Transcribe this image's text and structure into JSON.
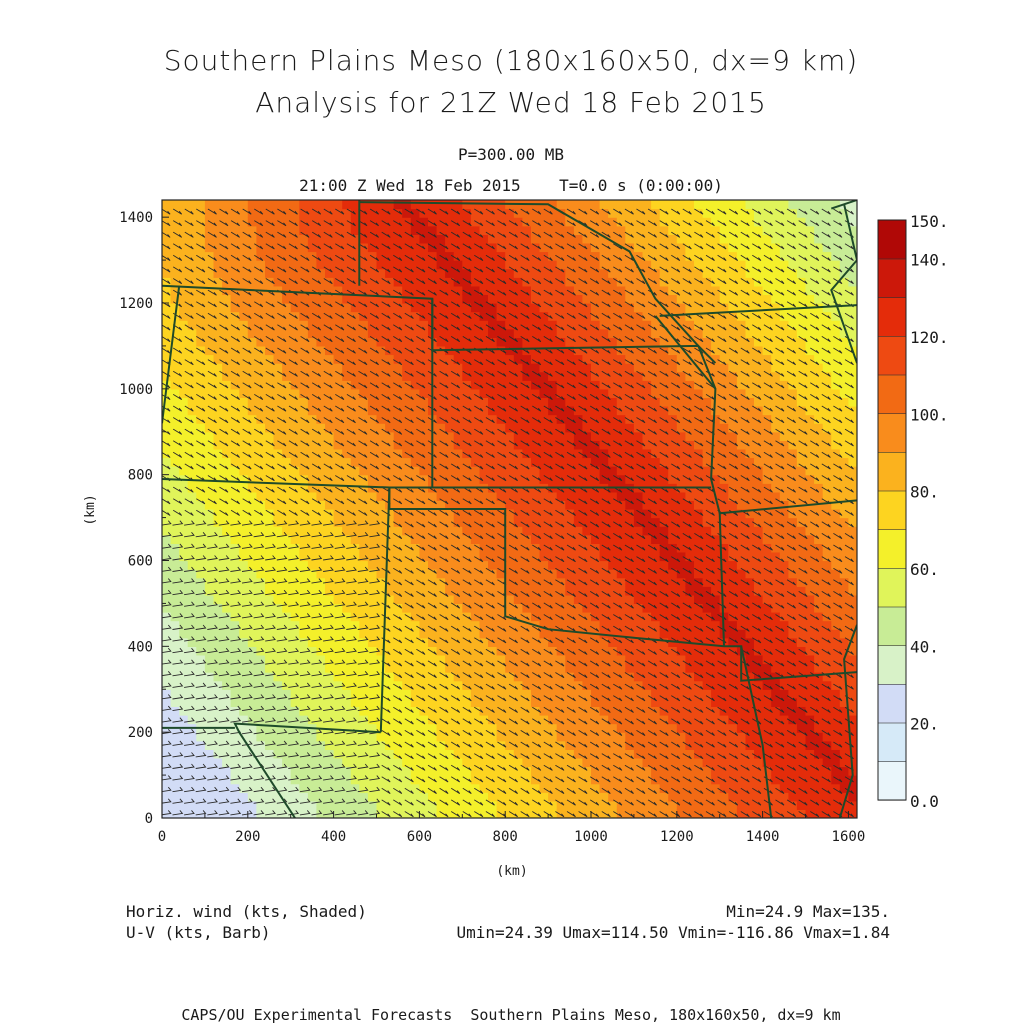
{
  "title": {
    "line1": "Southern Plains Meso (180x160x50, dx=9 km)",
    "line2": "Analysis for 21Z Wed 18 Feb 2015"
  },
  "subtitle": {
    "level": "P=300.00 MB",
    "time": "21:00 Z Wed 18 Feb 2015    T=0.0 s (0:00:00)"
  },
  "axes": {
    "x_label": "(km)",
    "y_label": "(km)",
    "x_ticks": [
      "0",
      "200",
      "400",
      "600",
      "800",
      "1000",
      "1200",
      "1400",
      "1600"
    ],
    "y_ticks": [
      "0",
      "200",
      "400",
      "600",
      "800",
      "1000",
      "1200",
      "1400"
    ],
    "x_range_km": [
      0,
      1620
    ],
    "y_range_km": [
      0,
      1440
    ]
  },
  "colorbar": {
    "labels": [
      "150.",
      "140.",
      "120.",
      "100.",
      "80.",
      "60.",
      "40.",
      "20.",
      "0.0"
    ],
    "label_values": [
      150,
      140,
      120,
      100,
      80,
      60,
      40,
      20,
      0
    ],
    "levels": [
      0,
      10,
      20,
      30,
      40,
      50,
      60,
      70,
      80,
      90,
      100,
      110,
      120,
      130,
      140,
      150
    ],
    "colors": [
      "#eaf6fb",
      "#d6eaf8",
      "#d2dcf6",
      "#d8f2c8",
      "#c8ec96",
      "#e0f45a",
      "#f4f02a",
      "#fdd420",
      "#fbb21e",
      "#f98c1c",
      "#f26a14",
      "#ee4a12",
      "#e42c0a",
      "#cc180a",
      "#b00806"
    ]
  },
  "footer": {
    "left_line1": "Horiz. wind (kts, Shaded)",
    "left_line2": "U-V (kts, Barb)",
    "right_line1": "Min=24.9 Max=135.",
    "right_line2": "Umin=24.39 Umax=114.50 Vmin=-116.86 Vmax=1.84",
    "bottom": "CAPS/OU Experimental Forecasts  Southern Plains Meso, 180x160x50, dx=9 km"
  },
  "chart_data": {
    "type": "heatmap",
    "variable": "Horiz. wind (kts, Shaded)",
    "overlay": "U-V (kts, Barb)",
    "min": 24.9,
    "max": 135.0,
    "umin": 24.39,
    "umax": 114.5,
    "vmin": -116.86,
    "vmax": 1.84,
    "jet_axis_km": [
      [
        560,
        1440
      ],
      [
        1280,
        500
      ],
      [
        1620,
        60
      ]
    ],
    "minimum_location_km": [
      20,
      260
    ]
  }
}
